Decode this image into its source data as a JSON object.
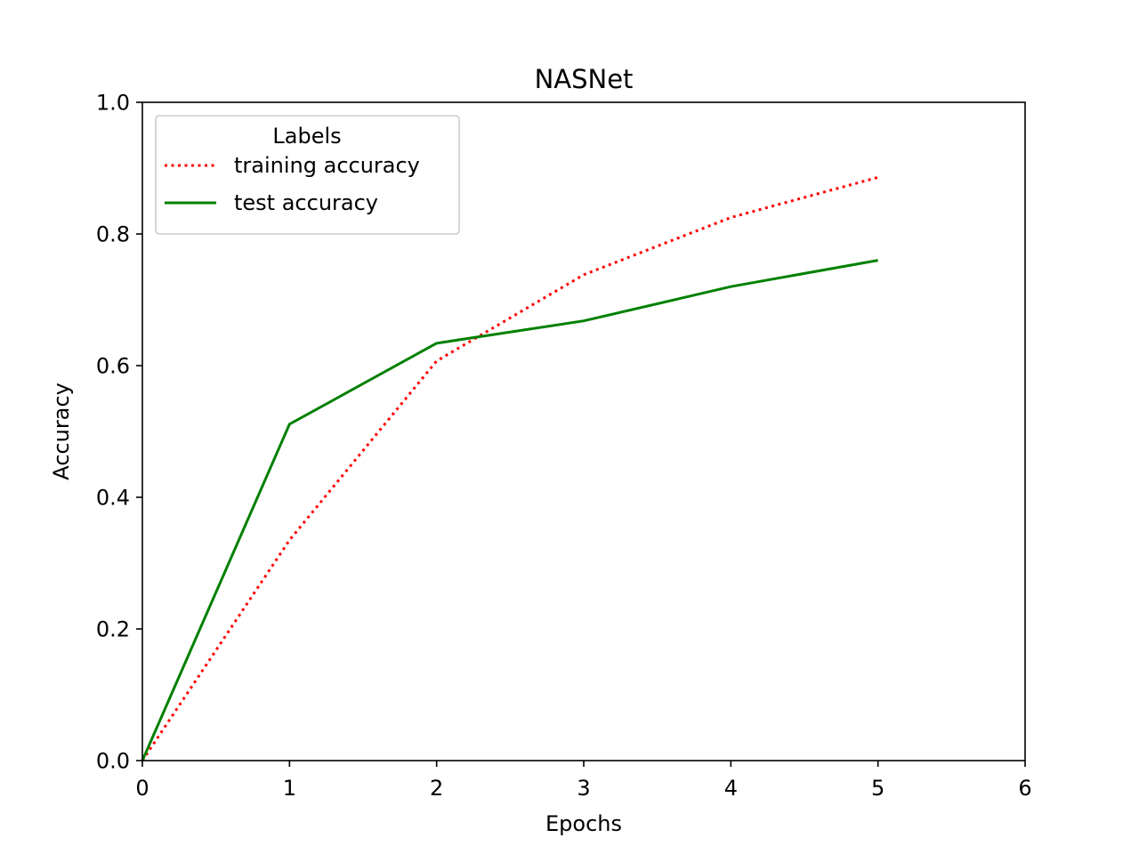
{
  "chart_data": {
    "type": "line",
    "title": "NASNet",
    "xlabel": "Epochs",
    "ylabel": "Accuracy",
    "xlim": [
      0,
      6
    ],
    "ylim": [
      0.0,
      1.0
    ],
    "xticks": [
      0,
      1,
      2,
      3,
      4,
      5,
      6
    ],
    "xtick_labels": [
      "0",
      "1",
      "2",
      "3",
      "4",
      "5",
      "6"
    ],
    "yticks": [
      0.0,
      0.2,
      0.4,
      0.6,
      0.8,
      1.0
    ],
    "ytick_labels": [
      "0.0",
      "0.2",
      "0.4",
      "0.6",
      "0.8",
      "1.0"
    ],
    "grid": false,
    "legend": {
      "title": "Labels",
      "placement": "upper-left"
    },
    "x": [
      0,
      1,
      2,
      3,
      4,
      5
    ],
    "series": [
      {
        "name": "training accuracy",
        "color": "#ff0000",
        "style": "dotted",
        "values": [
          0.0,
          0.335,
          0.607,
          0.738,
          0.825,
          0.886
        ]
      },
      {
        "name": "test accuracy",
        "color": "#008000",
        "style": "solid",
        "values": [
          0.0,
          0.511,
          0.634,
          0.668,
          0.72,
          0.76
        ]
      }
    ]
  }
}
